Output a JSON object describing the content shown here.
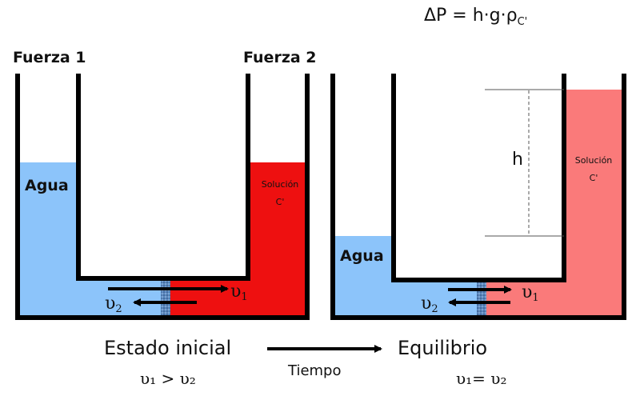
{
  "formula": {
    "lhs": "ΔP = h·g·ρ",
    "sub": "C'"
  },
  "colors": {
    "water": "#8cc4fa",
    "solution_initial": "#ee1010",
    "solution_equilibrium": "#fa7a7a",
    "wall": "#000000",
    "membrane": "#4a79b0"
  },
  "left": {
    "force1": "Fuerza 1",
    "force2": "Fuerza 2",
    "water": "Agua",
    "solution_line1": "Solución",
    "solution_line2": "C'",
    "flow1": "υ",
    "flow1_sub": "1",
    "flow2": "υ",
    "flow2_sub": "2",
    "caption": "Estado inicial",
    "relation": "υ₁ > υ₂"
  },
  "arrow_label": "Tiempo",
  "right": {
    "water": "Agua",
    "solution_line1": "Solución",
    "solution_line2": "C'",
    "height": "h",
    "flow1": "υ",
    "flow1_sub": "1",
    "flow2": "υ",
    "flow2_sub": "2",
    "caption": "Equilibrio",
    "relation": "υ₁= υ₂"
  }
}
